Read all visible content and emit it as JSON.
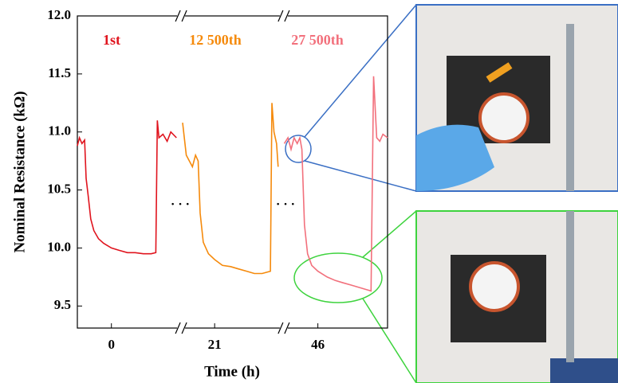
{
  "chart_data": {
    "type": "line",
    "y_label": "Nominal Resistance (kΩ)",
    "x_label": "Time (h)",
    "ylim": [
      9.31,
      12.0
    ],
    "yticks": [
      {
        "value": 9.5,
        "label": "9.5"
      },
      {
        "value": 10.0,
        "label": "10.0"
      },
      {
        "value": 10.5,
        "label": "10.5"
      },
      {
        "value": 11.0,
        "label": "11.0"
      },
      {
        "value": 11.5,
        "label": "11.5"
      },
      {
        "value": 12.0,
        "label": "12.0"
      }
    ],
    "xlim_segments": [
      [
        -6.6,
        13.5
      ],
      [
        14.5,
        34.4
      ],
      [
        39.4,
        59.5
      ]
    ],
    "xticks": [
      0,
      21,
      46
    ],
    "annotations": [
      "· · ·",
      "· · ·"
    ],
    "series": [
      {
        "name": "1st",
        "color": "#e0141e",
        "x": [
          -6.6,
          -6.2,
          -5.7,
          -5.2,
          -4.9,
          -4.5,
          -4.0,
          -3.4,
          -2.5,
          -1.5,
          0,
          1.5,
          3.1,
          4.6,
          6.2,
          7.7,
          8.6,
          8.9,
          9.2,
          10.0,
          10.8,
          11.5,
          12.6
        ],
        "values": [
          10.88,
          10.95,
          10.9,
          10.93,
          10.6,
          10.45,
          10.25,
          10.15,
          10.08,
          10.04,
          10.0,
          9.98,
          9.96,
          9.96,
          9.95,
          9.95,
          9.96,
          11.1,
          10.95,
          10.98,
          10.92,
          11.0,
          10.95
        ]
      },
      {
        "name": "12 500th",
        "color": "#f58a0c",
        "x": [
          14.8,
          15.5,
          16.1,
          16.7,
          17.3,
          17.8,
          18.2,
          18.8,
          19.8,
          21,
          22.5,
          24.1,
          25.6,
          27.2,
          28.7,
          30.2,
          31.8,
          32.1,
          32.5,
          33.0,
          33.3
        ],
        "values": [
          11.08,
          10.8,
          10.75,
          10.7,
          10.8,
          10.75,
          10.3,
          10.05,
          9.95,
          9.9,
          9.85,
          9.84,
          9.82,
          9.8,
          9.78,
          9.78,
          9.8,
          11.25,
          11.0,
          10.9,
          10.7
        ]
      },
      {
        "name": "27 500th",
        "color": "#f2707c",
        "x": [
          39.5,
          40.2,
          40.8,
          41.4,
          42.0,
          42.5,
          42.9,
          43.4,
          44.0,
          44.8,
          46,
          47.8,
          49.4,
          50.9,
          52.5,
          54.0,
          55.5,
          56.3,
          56.8,
          57.4,
          58.0,
          58.6,
          59.5
        ],
        "values": [
          10.9,
          10.95,
          10.85,
          10.95,
          10.9,
          10.95,
          10.85,
          10.2,
          9.95,
          9.85,
          9.8,
          9.75,
          9.72,
          9.7,
          9.68,
          9.66,
          9.64,
          9.63,
          11.48,
          10.95,
          10.92,
          10.98,
          10.95
        ]
      }
    ]
  }
}
